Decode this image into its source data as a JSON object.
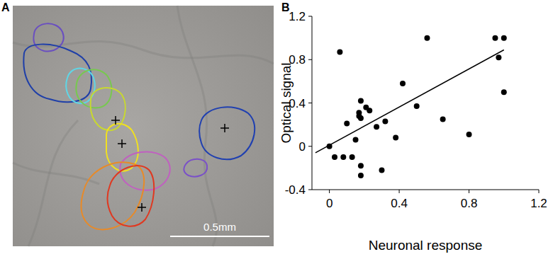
{
  "panel_labels": [
    "A",
    "B"
  ],
  "image": {
    "scale_bar": "0.5mm"
  },
  "chart_data": {
    "type": "scatter",
    "x_label": "Neuronal response",
    "y_label": "Optical signal",
    "xlim": [
      -0.1,
      1.2
    ],
    "ylim": [
      -0.4,
      1.2
    ],
    "xticks": [
      0,
      0.4,
      0.8,
      1.2
    ],
    "yticks": [
      -0.4,
      0,
      0.4,
      0.8,
      1.2
    ],
    "grid": false,
    "series": [
      {
        "type": "scatter",
        "color": "#000000",
        "marker": "circle",
        "x": [
          0.0,
          0.03,
          0.06,
          0.08,
          0.1,
          0.13,
          0.15,
          0.17,
          0.17,
          0.18,
          0.18,
          0.18,
          0.18,
          0.21,
          0.23,
          0.27,
          0.3,
          0.32,
          0.38,
          0.42,
          0.5,
          0.56,
          0.65,
          0.8,
          0.95,
          0.97,
          1.0,
          1.0
        ],
        "values": [
          0.0,
          -0.1,
          0.87,
          -0.1,
          0.21,
          -0.1,
          0.06,
          0.28,
          0.31,
          0.42,
          0.26,
          -0.18,
          -0.27,
          0.36,
          0.33,
          0.18,
          -0.22,
          0.23,
          0.08,
          0.58,
          0.37,
          1.0,
          0.25,
          0.11,
          1.0,
          0.82,
          1.0,
          0.5
        ]
      },
      {
        "type": "line",
        "color": "#000000",
        "line_style": "solid",
        "x": [
          -0.08,
          1.0
        ],
        "values": [
          -0.06,
          0.89
        ]
      }
    ]
  }
}
